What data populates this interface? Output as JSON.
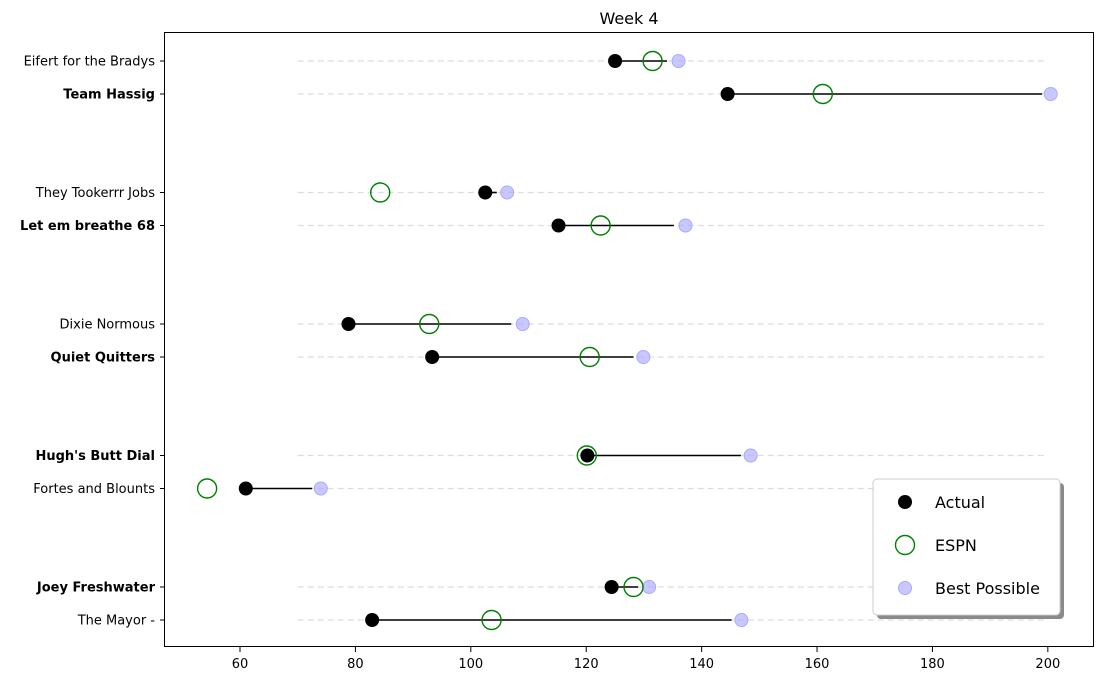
{
  "chart_data": {
    "type": "scatter",
    "title": "Week 4",
    "xlabel": "",
    "ylabel": "",
    "xlim": [
      47,
      208
    ],
    "xticks": [
      60,
      80,
      100,
      120,
      140,
      160,
      180,
      200
    ],
    "gridline_range": [
      70,
      200
    ],
    "legend_position": "lower-right",
    "colors": {
      "actual": "#000000",
      "espn": "#008000",
      "best": "#aaaaff",
      "gridline": "#dddddd"
    },
    "legend": [
      {
        "key": "actual",
        "label": "Actual"
      },
      {
        "key": "espn",
        "label": "ESPN"
      },
      {
        "key": "best",
        "label": "Best Possible"
      }
    ],
    "teams": [
      {
        "name": "Eifert for the Bradys",
        "bold": false,
        "actual": 125,
        "espn": 131.5,
        "best": 136,
        "line_end": 134
      },
      {
        "name": "Team Hassig",
        "bold": true,
        "actual": 144.5,
        "espn": 161,
        "best": 200.5,
        "line_end": 199
      },
      {
        "name": "They Tookerrr Jobs",
        "bold": false,
        "actual": 102.5,
        "espn": 84.3,
        "best": 106.3,
        "line_end": 104.5
      },
      {
        "name": "Let em breathe 68",
        "bold": true,
        "actual": 115.2,
        "espn": 122.5,
        "best": 137.2,
        "line_end": 135.2
      },
      {
        "name": "Dixie Normous",
        "bold": false,
        "actual": 78.8,
        "espn": 92.8,
        "best": 109,
        "line_end": 107
      },
      {
        "name": "Quiet Quitters",
        "bold": true,
        "actual": 93.3,
        "espn": 120.6,
        "best": 129.9,
        "line_end": 128.2
      },
      {
        "name": "Hugh's Butt Dial",
        "bold": true,
        "actual": 120.2,
        "espn": 120.1,
        "best": 148.5,
        "line_end": 146.8
      },
      {
        "name": "Fortes and Blounts",
        "bold": false,
        "actual": 61,
        "espn": 54.3,
        "best": 74,
        "line_end": 72.5
      },
      {
        "name": "Joey Freshwater",
        "bold": true,
        "actual": 124.4,
        "espn": 128.2,
        "best": 130.9,
        "line_end": 129
      },
      {
        "name": "The Mayor -",
        "bold": false,
        "actual": 82.9,
        "espn": 103.6,
        "best": 146.9,
        "line_end": 145.2
      }
    ]
  }
}
